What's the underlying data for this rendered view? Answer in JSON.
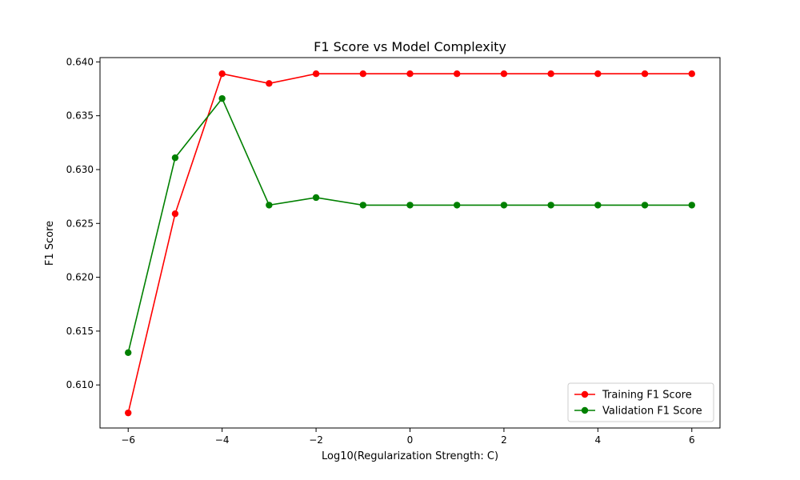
{
  "chart_data": {
    "type": "line",
    "title": "F1 Score vs Model Complexity",
    "xlabel": "Log10(Regularization Strength: C)",
    "ylabel": "F1 Score",
    "x": [
      -6,
      -5,
      -4,
      -3,
      -2,
      -1,
      0,
      1,
      2,
      3,
      4,
      5,
      6
    ],
    "xlim": [
      -6.6,
      6.6
    ],
    "ylim": [
      0.606,
      0.6404
    ],
    "xticks": [
      -6,
      -4,
      -2,
      0,
      2,
      4,
      6
    ],
    "xtick_labels": [
      "−6",
      "−4",
      "−2",
      "0",
      "2",
      "4",
      "6"
    ],
    "yticks": [
      0.61,
      0.615,
      0.62,
      0.625,
      0.63,
      0.635,
      0.64
    ],
    "ytick_labels": [
      "0.610",
      "0.615",
      "0.620",
      "0.625",
      "0.630",
      "0.635",
      "0.640"
    ],
    "grid": false,
    "legend_position": "lower-right",
    "series": [
      {
        "name": "Training F1 Score",
        "color": "#ff0000",
        "values": [
          0.6074,
          0.6259,
          0.6389,
          0.638,
          0.6389,
          0.6389,
          0.6389,
          0.6389,
          0.6389,
          0.6389,
          0.6389,
          0.6389,
          0.6389
        ]
      },
      {
        "name": "Validation F1 Score",
        "color": "#008000",
        "values": [
          0.613,
          0.6311,
          0.6366,
          0.6267,
          0.6274,
          0.6267,
          0.6267,
          0.6267,
          0.6267,
          0.6267,
          0.6267,
          0.6267,
          0.6267
        ]
      }
    ]
  }
}
